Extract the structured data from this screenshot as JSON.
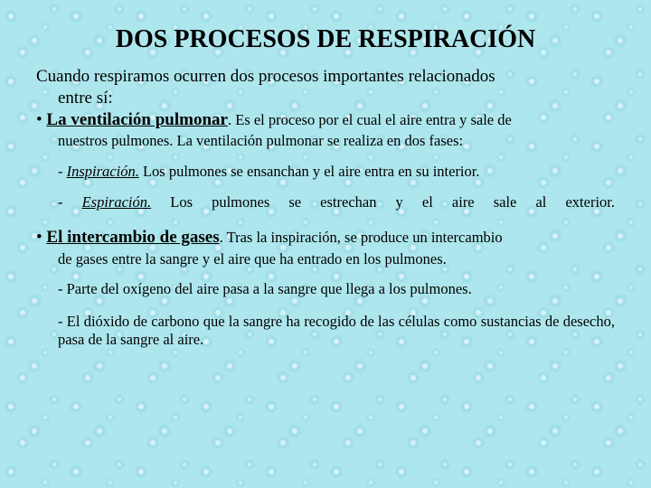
{
  "title": "DOS PROCESOS DE RESPIRACIÓN",
  "intro_l1": "Cuando respiramos ocurren dos procesos importantes relacionados",
  "intro_l2": "entre sí:",
  "p1": {
    "bullet": "• ",
    "lead": "La ventilación pulmonar",
    "after": ". Es el proceso por el cual el aire entra y sale de",
    "body2": "nuestros pulmones. La ventilación pulmonar se realiza en dos fases:",
    "phase1_dash": "- ",
    "phase1_name": "Inspiración.",
    "phase1_rest": " Los pulmones se ensanchan y el aire entra en su interior.",
    "phase2_dash": "- ",
    "phase2_name": "Espiración.",
    "phase2_rest": " Los pulmones se estrechan y el aire sale al exterior."
  },
  "p2": {
    "bullet": "• ",
    "lead": "El intercambio de gases",
    "after": ". Tras la inspiración, se produce un intercambio",
    "body2": "de gases entre la sangre y el aire que ha entrado en los pulmones.",
    "s1": "- Parte del oxígeno del aire pasa a la sangre que llega a los pulmones.",
    "s2": "- El dióxido de carbono que la sangre ha recogido de las células como sustancias de desecho, pasa de la sangre al aire."
  },
  "colors": {
    "background": "#aee6ed",
    "text": "#000000"
  },
  "fonts": {
    "title_family": "Comic Sans MS",
    "title_size_pt": 21,
    "body_family": "Times New Roman",
    "body_size_pt": 14,
    "small_size_pt": 12
  }
}
